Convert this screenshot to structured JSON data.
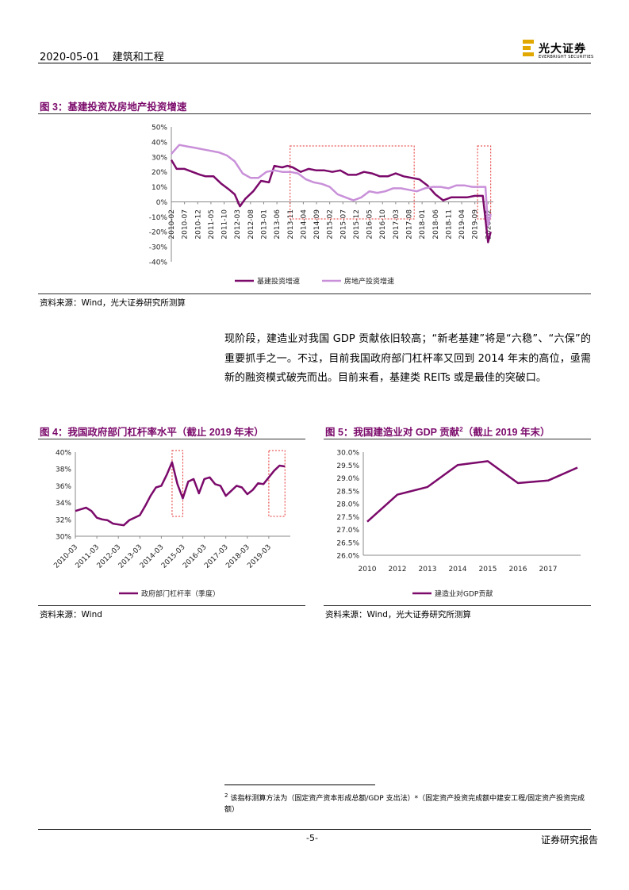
{
  "header": {
    "date": "2020-05-01",
    "section": "建筑和工程",
    "logo_cn": "光大证券",
    "logo_en": "EVERBRIGHT SECURITIES"
  },
  "fig3": {
    "title": "图 3：基建投资及房地产投资增速",
    "source": "资料来源：Wind，光大证券研究所测算"
  },
  "fig4": {
    "title": "图 4：我国政府部门杠杆率水平（截止 2019 年末）",
    "source": "资料来源：Wind"
  },
  "fig5": {
    "title": "图 5：我国建造业对 GDP 贡献",
    "title_sup": "2",
    "title_tail": "（截止 2019 年末）",
    "source": "资料来源：Wind，光大证券研究所测算"
  },
  "body": {
    "paragraph": "现阶段，建造业对我国 GDP 贡献依旧较高；“新老基建”将是“六稳”、“六保”的重要抓手之一。不过，目前我国政府部门杠杆率又回到 2014 年末的高位，亟需新的融资模式破壳而出。目前来看，基建类 REITs 或是最佳的突破口。"
  },
  "footnote": {
    "num": "2",
    "text": "该指标测算方法为（固定资产资本形成总额/GDP 支出法）*（固定资产投资完成额中建安工程/固定资产投资完成额）"
  },
  "footer": {
    "page": "-5-",
    "right": "证券研究报告"
  },
  "colors": {
    "accent": "#7b0a6b",
    "series1": "#7b0a6b",
    "series2": "#c990d9",
    "highlight_box": "#e53030"
  },
  "chart_data": [
    {
      "type": "line",
      "ylim": [
        -40,
        50
      ],
      "yticks": [
        "50%",
        "40%",
        "30%",
        "20%",
        "10%",
        "0%",
        "-10%",
        "-20%",
        "-30%",
        "-40%"
      ],
      "xticks": [
        "2010-02",
        "2010-07",
        "2010-12",
        "2011-05",
        "2011-10",
        "2012-03",
        "2012-08",
        "2013-01",
        "2013-06",
        "2013-11",
        "2014-04",
        "2014-09",
        "2015-02",
        "2015-07",
        "2015-12",
        "2016-05",
        "2016-10",
        "2017-03",
        "2017-08",
        "2018-01",
        "2018-06",
        "2018-11",
        "2019-04",
        "2019-09",
        "2020-02"
      ],
      "highlights": [
        [
          "2013-11",
          "2017-10"
        ],
        [
          "2019-10",
          "2020-03"
        ]
      ],
      "series": [
        {
          "name": "基建投资增速",
          "color": "#7b0a6b",
          "x": [
            "2010-02",
            "2010-04",
            "2010-07",
            "2010-10",
            "2011-01",
            "2011-03",
            "2011-06",
            "2011-09",
            "2011-12",
            "2012-02",
            "2012-04",
            "2012-06",
            "2012-09",
            "2012-12",
            "2013-03",
            "2013-05",
            "2013-08",
            "2013-10",
            "2013-12",
            "2014-03",
            "2014-06",
            "2014-09",
            "2014-12",
            "2015-03",
            "2015-06",
            "2015-09",
            "2015-12",
            "2016-03",
            "2016-06",
            "2016-09",
            "2016-12",
            "2017-03",
            "2017-06",
            "2017-09",
            "2017-12",
            "2018-03",
            "2018-06",
            "2018-09",
            "2018-12",
            "2019-03",
            "2019-06",
            "2019-09",
            "2019-12",
            "2020-02",
            "2020-03"
          ],
          "values": [
            28,
            22,
            22,
            20,
            18,
            17,
            17,
            12,
            8,
            5,
            -3,
            2,
            7,
            14,
            13,
            24,
            23,
            24,
            23,
            20,
            22,
            21,
            21,
            20,
            21,
            18,
            18,
            20,
            19,
            17,
            17,
            19,
            17,
            16,
            15,
            11,
            5,
            1,
            3,
            3,
            3,
            4,
            4,
            -27,
            -20
          ]
        },
        {
          "name": "房地产投资增速",
          "color": "#c990d9",
          "x": [
            "2010-02",
            "2010-05",
            "2010-08",
            "2010-11",
            "2011-02",
            "2011-05",
            "2011-08",
            "2011-11",
            "2012-02",
            "2012-05",
            "2012-08",
            "2012-11",
            "2013-02",
            "2013-05",
            "2013-08",
            "2013-11",
            "2014-02",
            "2014-05",
            "2014-08",
            "2014-11",
            "2015-02",
            "2015-05",
            "2015-08",
            "2015-11",
            "2016-02",
            "2016-05",
            "2016-08",
            "2016-11",
            "2017-02",
            "2017-05",
            "2017-08",
            "2017-11",
            "2018-02",
            "2018-05",
            "2018-08",
            "2018-11",
            "2019-02",
            "2019-05",
            "2019-08",
            "2019-11",
            "2020-01",
            "2020-02",
            "2020-03"
          ],
          "values": [
            32,
            38,
            37,
            36,
            35,
            34,
            33,
            31,
            27,
            19,
            16,
            16,
            20,
            21,
            20,
            20,
            19,
            15,
            13,
            12,
            10,
            5,
            3,
            1,
            3,
            7,
            6,
            7,
            9,
            9,
            8,
            7,
            9,
            10,
            10,
            9,
            11,
            11,
            10,
            10,
            10,
            -16,
            -8
          ]
        }
      ]
    },
    {
      "type": "line",
      "ylim": [
        30,
        40
      ],
      "yticks": [
        "40%",
        "38%",
        "36%",
        "34%",
        "32%",
        "30%"
      ],
      "xticks": [
        "2010-03",
        "2011-03",
        "2012-03",
        "2013-03",
        "2014-03",
        "2015-03",
        "2016-03",
        "2017-03",
        "2018-03",
        "2019-03"
      ],
      "highlights": [
        [
          "2014-09",
          "2015-03"
        ],
        [
          "2019-03",
          "2019-12"
        ]
      ],
      "series": [
        {
          "name": "政府部门杠杆率（季度）",
          "color": "#7b0a6b",
          "x": [
            "2010-03",
            "2010-06",
            "2010-09",
            "2010-12",
            "2011-03",
            "2011-06",
            "2011-09",
            "2011-12",
            "2012-03",
            "2012-06",
            "2012-09",
            "2012-12",
            "2013-03",
            "2013-06",
            "2013-09",
            "2013-12",
            "2014-03",
            "2014-06",
            "2014-09",
            "2014-12",
            "2015-03",
            "2015-06",
            "2015-09",
            "2015-12",
            "2016-03",
            "2016-06",
            "2016-09",
            "2016-12",
            "2017-03",
            "2017-06",
            "2017-09",
            "2017-12",
            "2018-03",
            "2018-06",
            "2018-09",
            "2018-12",
            "2019-03",
            "2019-06",
            "2019-09",
            "2019-12"
          ],
          "values": [
            33.0,
            33.2,
            33.4,
            33.0,
            32.2,
            32.0,
            31.9,
            31.5,
            31.4,
            31.3,
            31.9,
            32.2,
            32.5,
            33.6,
            34.8,
            35.8,
            36.0,
            37.3,
            38.8,
            36.2,
            34.5,
            36.5,
            36.8,
            35.1,
            36.8,
            37.0,
            36.2,
            36.0,
            34.8,
            35.4,
            36.0,
            35.8,
            35.0,
            35.5,
            36.3,
            36.2,
            37.0,
            37.8,
            38.4,
            38.3
          ]
        }
      ]
    },
    {
      "type": "line",
      "ylim": [
        26.0,
        30.0
      ],
      "yticks": [
        "30.0%",
        "29.5%",
        "29.0%",
        "28.5%",
        "28.0%",
        "27.5%",
        "27.0%",
        "26.5%",
        "26.0%"
      ],
      "categories": [
        "2010",
        "2011",
        "2012",
        "2013",
        "2014",
        "2015",
        "2016",
        "2017",
        "2018",
        "2019"
      ],
      "xticks": [
        "2010",
        "2012",
        "2013",
        "2014",
        "2015",
        "2016",
        "2017"
      ],
      "series": [
        {
          "name": "建造业对GDP贡献",
          "color": "#7b0a6b",
          "values": [
            27.3,
            null,
            28.35,
            28.65,
            29.5,
            29.65,
            28.8,
            28.9,
            null,
            29.4
          ]
        }
      ]
    }
  ]
}
